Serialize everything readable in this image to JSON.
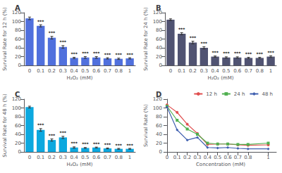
{
  "chart_data": [
    {
      "type": "bar",
      "title": "A",
      "categories": [
        "0",
        "0.1",
        "0.2",
        "0.3",
        "0.4",
        "0.5",
        "0.6",
        "0.7",
        "0.8",
        "1"
      ],
      "values": [
        107,
        90,
        63,
        42,
        17,
        18,
        18,
        16,
        15,
        16
      ],
      "errors": [
        3,
        2.5,
        3,
        3,
        1.5,
        2,
        2,
        1.5,
        1.5,
        1.5
      ],
      "annotations": [
        null,
        "***",
        "***",
        "***",
        "***",
        "***",
        "***",
        "***",
        "***",
        "***"
      ],
      "xlabel": "H₂O₂ (mM)",
      "ylabel": "Survival Rate for 12 h (%)",
      "ylim": [
        0,
        120
      ],
      "yticks": [
        0,
        20,
        40,
        60,
        80,
        100,
        120
      ],
      "grid": false
    },
    {
      "type": "bar",
      "title": "B",
      "categories": [
        "0",
        "0.1",
        "0.2",
        "0.3",
        "0.4",
        "0.5",
        "0.6",
        "0.7",
        "0.8",
        "1"
      ],
      "values": [
        104,
        72,
        52,
        40,
        20,
        18,
        18,
        17,
        17,
        20
      ],
      "errors": [
        2,
        2.5,
        3,
        2.5,
        1.5,
        1.5,
        1.5,
        1.5,
        1.5,
        2
      ],
      "annotations": [
        null,
        "***",
        "***",
        "***",
        "***",
        "***",
        "***",
        "***",
        "***",
        "***"
      ],
      "xlabel": "H₂O₂ (mM)",
      "ylabel": "Survival Rate for 24 h (%)",
      "ylim": [
        0,
        120
      ],
      "yticks": [
        0,
        20,
        40,
        60,
        80,
        100,
        120
      ],
      "grid": false
    },
    {
      "type": "bar",
      "title": "C",
      "categories": [
        "0",
        "0.1",
        "0.2",
        "0.3",
        "0.4",
        "0.5",
        "0.6",
        "0.7",
        "0.8",
        "1"
      ],
      "values": [
        102,
        50,
        27,
        33,
        10,
        9,
        10,
        8,
        7,
        7
      ],
      "errors": [
        2,
        3,
        2.5,
        2.5,
        1.5,
        1,
        1,
        1,
        1,
        1
      ],
      "annotations": [
        null,
        "***",
        "***",
        "***",
        "***",
        "***",
        "***",
        "***",
        "***",
        "***"
      ],
      "xlabel": "H₂O₂ (mM)",
      "ylabel": "Survival Rate for 48 h (%)",
      "ylim": [
        0,
        120
      ],
      "yticks": [
        0,
        20,
        40,
        60,
        80,
        100,
        120
      ],
      "grid": false
    },
    {
      "type": "line",
      "title": "D",
      "x": [
        0,
        0.1,
        0.2,
        0.3,
        0.4,
        0.5,
        0.6,
        0.7,
        0.8,
        1.0
      ],
      "series": [
        {
          "name": "12 h",
          "color": "#e05050",
          "marker": "circle",
          "values": [
            107,
            90,
            63,
            42,
            17,
            18,
            18,
            16,
            15,
            16
          ]
        },
        {
          "name": "24 h",
          "color": "#50b050",
          "marker": "square",
          "values": [
            104,
            72,
            52,
            40,
            20,
            18,
            18,
            17,
            17,
            20
          ]
        },
        {
          "name": "48 h",
          "color": "#4060b0",
          "marker": "diamond",
          "values": [
            102,
            50,
            27,
            33,
            10,
            9,
            10,
            8,
            7,
            7
          ]
        }
      ],
      "xlabel": "Concentration (mM)",
      "ylabel": "Survival Rate (%)",
      "xlim": [
        -0.02,
        1.08
      ],
      "xticks": [
        0,
        0.1,
        0.2,
        0.3,
        0.4,
        0.5,
        0.6,
        0.7,
        0.8,
        1.0
      ],
      "ylim": [
        0,
        120
      ],
      "yticks": [
        0,
        20,
        40,
        60,
        80,
        100,
        120
      ],
      "legend": "upper right",
      "grid": false
    }
  ]
}
